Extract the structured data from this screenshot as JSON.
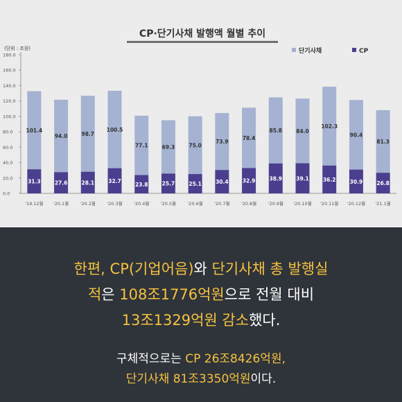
{
  "chart_data": {
    "type": "bar",
    "stacked": true,
    "title": "CP·단기사채 발행액 월별 추이",
    "unit_label": "(단위 : 조원)",
    "categories": [
      "'19.12월",
      "'20.1월",
      "'20.2월",
      "'20.3월",
      "'20.4월",
      "'20.5월",
      "'20.6월",
      "'20.7월",
      "'20.8월",
      "'20.9월",
      "'20.10월",
      "'20.11월",
      "'20.12월",
      "'21.1월"
    ],
    "series": [
      {
        "name": "CP",
        "color": "#4a3f8f",
        "values": [
          31.3,
          27.6,
          28.1,
          32.7,
          23.8,
          25.7,
          25.1,
          30.4,
          32.9,
          38.9,
          39.1,
          36.2,
          30.9,
          26.8
        ]
      },
      {
        "name": "단기사채",
        "color": "#a5b2d2",
        "values": [
          101.4,
          94.0,
          98.7,
          100.5,
          77.1,
          69.3,
          75.0,
          73.9,
          78.4,
          85.8,
          84.0,
          102.3,
          90.4,
          81.3
        ]
      }
    ],
    "ylim": [
      0,
      180
    ],
    "yticks": [
      "0.0",
      "20.0",
      "40.0",
      "60.0",
      "80.0",
      "100.0",
      "120.0",
      "140.0",
      "160.0",
      "180.0"
    ],
    "value_labels": {
      "CP": [
        "31.3",
        "27.6",
        "28.1",
        "32.7",
        "23.8",
        "25.7",
        "25.1",
        "30.4",
        "32.9",
        "38.9",
        "39.1",
        "36.2",
        "30.9",
        "26.8"
      ],
      "단기사채": [
        "101.4",
        "94.0",
        "98.7",
        "100.5",
        "77.1",
        "69.3",
        "75.0",
        "73.9",
        "78.4",
        "85.8",
        "84.0",
        "102.3",
        "90.4",
        "81.3"
      ]
    },
    "legend_position": "top-right",
    "grid": false
  },
  "text": {
    "headline": [
      [
        {
          "t": "한편, ",
          "hl": true
        },
        {
          "t": "CP(기업어음)",
          "hl": true
        },
        {
          "t": "와 ",
          "hl": false
        },
        {
          "t": "단기사채 총 발행실",
          "hl": true
        }
      ],
      [
        {
          "t": "적",
          "hl": true
        },
        {
          "t": "은 ",
          "hl": false
        },
        {
          "t": "108조1776억원",
          "hl": true
        },
        {
          "t": "으로 전월 대비",
          "hl": false
        }
      ],
      [
        {
          "t": "13조1329억원 감소",
          "hl": true
        },
        {
          "t": "했다.",
          "hl": false
        }
      ]
    ],
    "detail": [
      [
        {
          "t": "구체적으로는 ",
          "hl": false
        },
        {
          "t": "CP 26조8426억원,",
          "hl": true
        }
      ],
      [
        {
          "t": "단기사채 81조3350억원",
          "hl": true
        },
        {
          "t": "이다.",
          "hl": false
        }
      ]
    ]
  }
}
